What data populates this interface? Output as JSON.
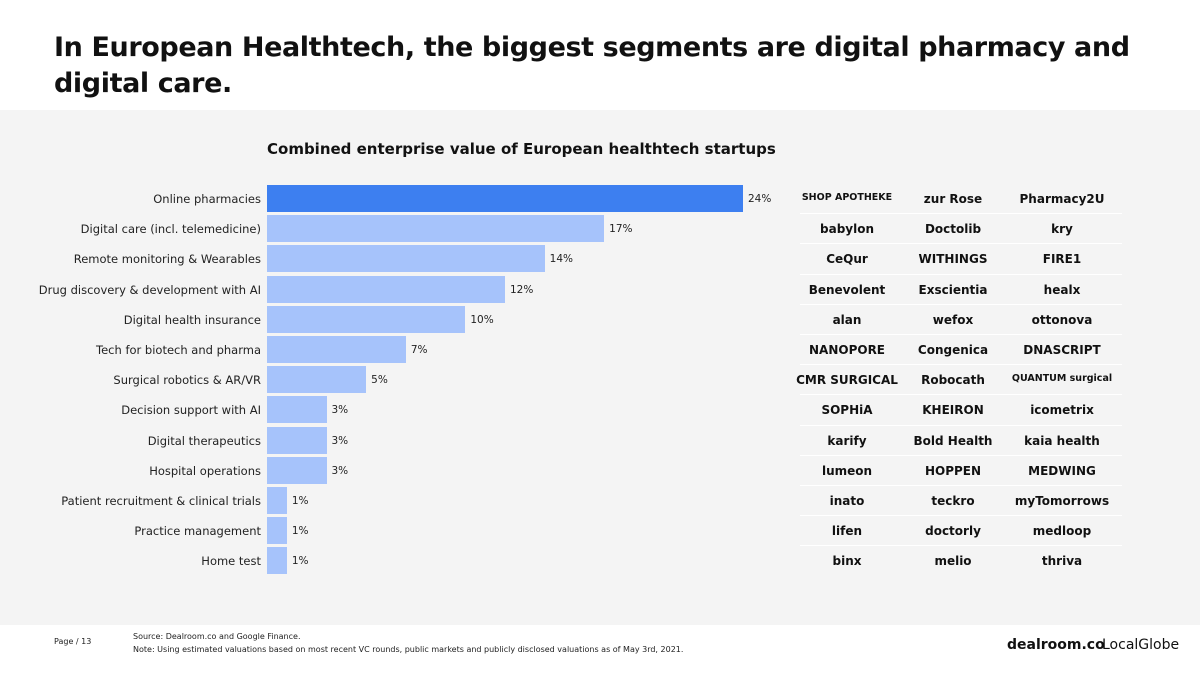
{
  "headline": "In European Healthtech, the biggest segments are digital pharmacy and digital care.",
  "chart_data": {
    "type": "bar",
    "orientation": "horizontal",
    "title": "Combined enterprise value of European healthtech startups",
    "categories": [
      "Online pharmacies",
      "Digital care (incl. telemedicine)",
      "Remote monitoring & Wearables",
      "Drug discovery & development with AI",
      "Digital health insurance",
      "Tech for biotech and pharma",
      "Surgical robotics & AR/VR",
      "Decision support with AI",
      "Digital therapeutics",
      "Hospital operations",
      "Patient recruitment & clinical trials",
      "Practice management",
      "Home test"
    ],
    "values": [
      24,
      17,
      14,
      12,
      10,
      7,
      5,
      3,
      3,
      3,
      1,
      1,
      1
    ],
    "value_labels": [
      "24%",
      "17%",
      "14%",
      "12%",
      "10%",
      "7%",
      "5%",
      "3%",
      "3%",
      "3%",
      "1%",
      "1%",
      "1%"
    ],
    "colors": {
      "highlight": "#3d7ff0",
      "default": "#a6c3fb"
    },
    "xlim": [
      0,
      24
    ]
  },
  "logos": [
    [
      "SHOP APOTHEKE",
      "zur Rose",
      "Pharmacy2U"
    ],
    [
      "babylon",
      "Doctolib",
      "kry"
    ],
    [
      "CeQur",
      "WITHINGS",
      "FIRE1"
    ],
    [
      "Benevolent",
      "Exscientia",
      "healx"
    ],
    [
      "alan",
      "wefox",
      "ottonova"
    ],
    [
      "NANOPORE",
      "Congenica",
      "DNASCRIPT"
    ],
    [
      "CMR SURGICAL",
      "Robocath",
      "QUANTUM surgical"
    ],
    [
      "SOPHiA",
      "KHEIRON",
      "icometrix"
    ],
    [
      "karify",
      "Bold Health",
      "kaia health"
    ],
    [
      "lumeon",
      "HOPPEN",
      "MEDWING"
    ],
    [
      "inato",
      "teckro",
      "myTomorrows"
    ],
    [
      "lifen",
      "doctorly",
      "medloop"
    ],
    [
      "binx",
      "melio",
      "thriva"
    ]
  ],
  "footer": {
    "page": "Page / 13",
    "source_line1": "Source: Dealroom.co and Google Finance.",
    "source_line2": "Note: Using estimated valuations based on most recent VC rounds, public markets and publicly disclosed valuations as of May 3rd, 2021.",
    "brand1": "dealroom.co",
    "brand2": "LocalGlobe"
  }
}
